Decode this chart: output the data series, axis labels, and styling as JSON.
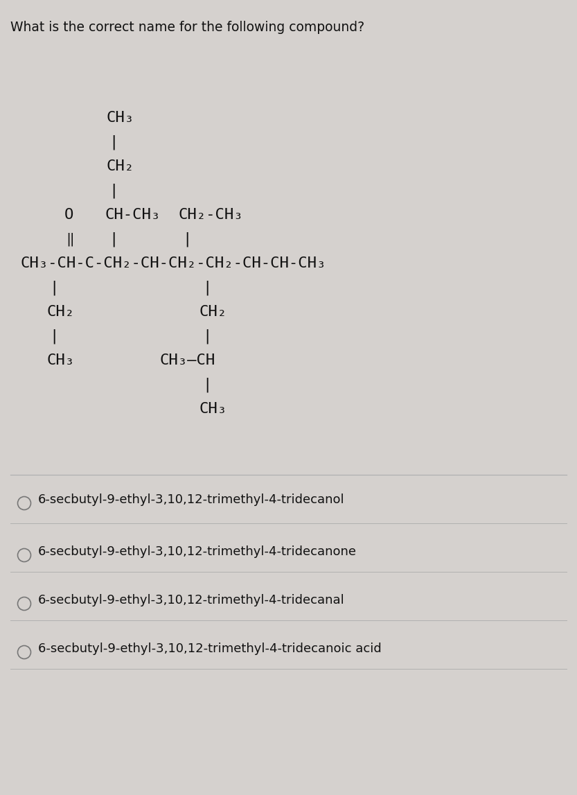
{
  "bg_color": "#d5d1ce",
  "question": "What is the correct name for the following compound?",
  "question_fontsize": 13.5,
  "choices": [
    "6-secbutyl-9-ethyl-3,10,12-trimethyl-4-tridecanol",
    "6-secbutyl-9-ethyl-3,10,12-trimethyl-4-tridecanone",
    "6-secbutyl-9-ethyl-3,10,12-trimethyl-4-tridecanal",
    "6-secbutyl-9-ethyl-3,10,12-trimethyl-4-tridecanoic acid"
  ],
  "choices_fontsize": 13,
  "line_color": "#b0b0b0",
  "text_color": "#111111",
  "struct_fontsize": 16,
  "struct_fontsize_sub": 13
}
